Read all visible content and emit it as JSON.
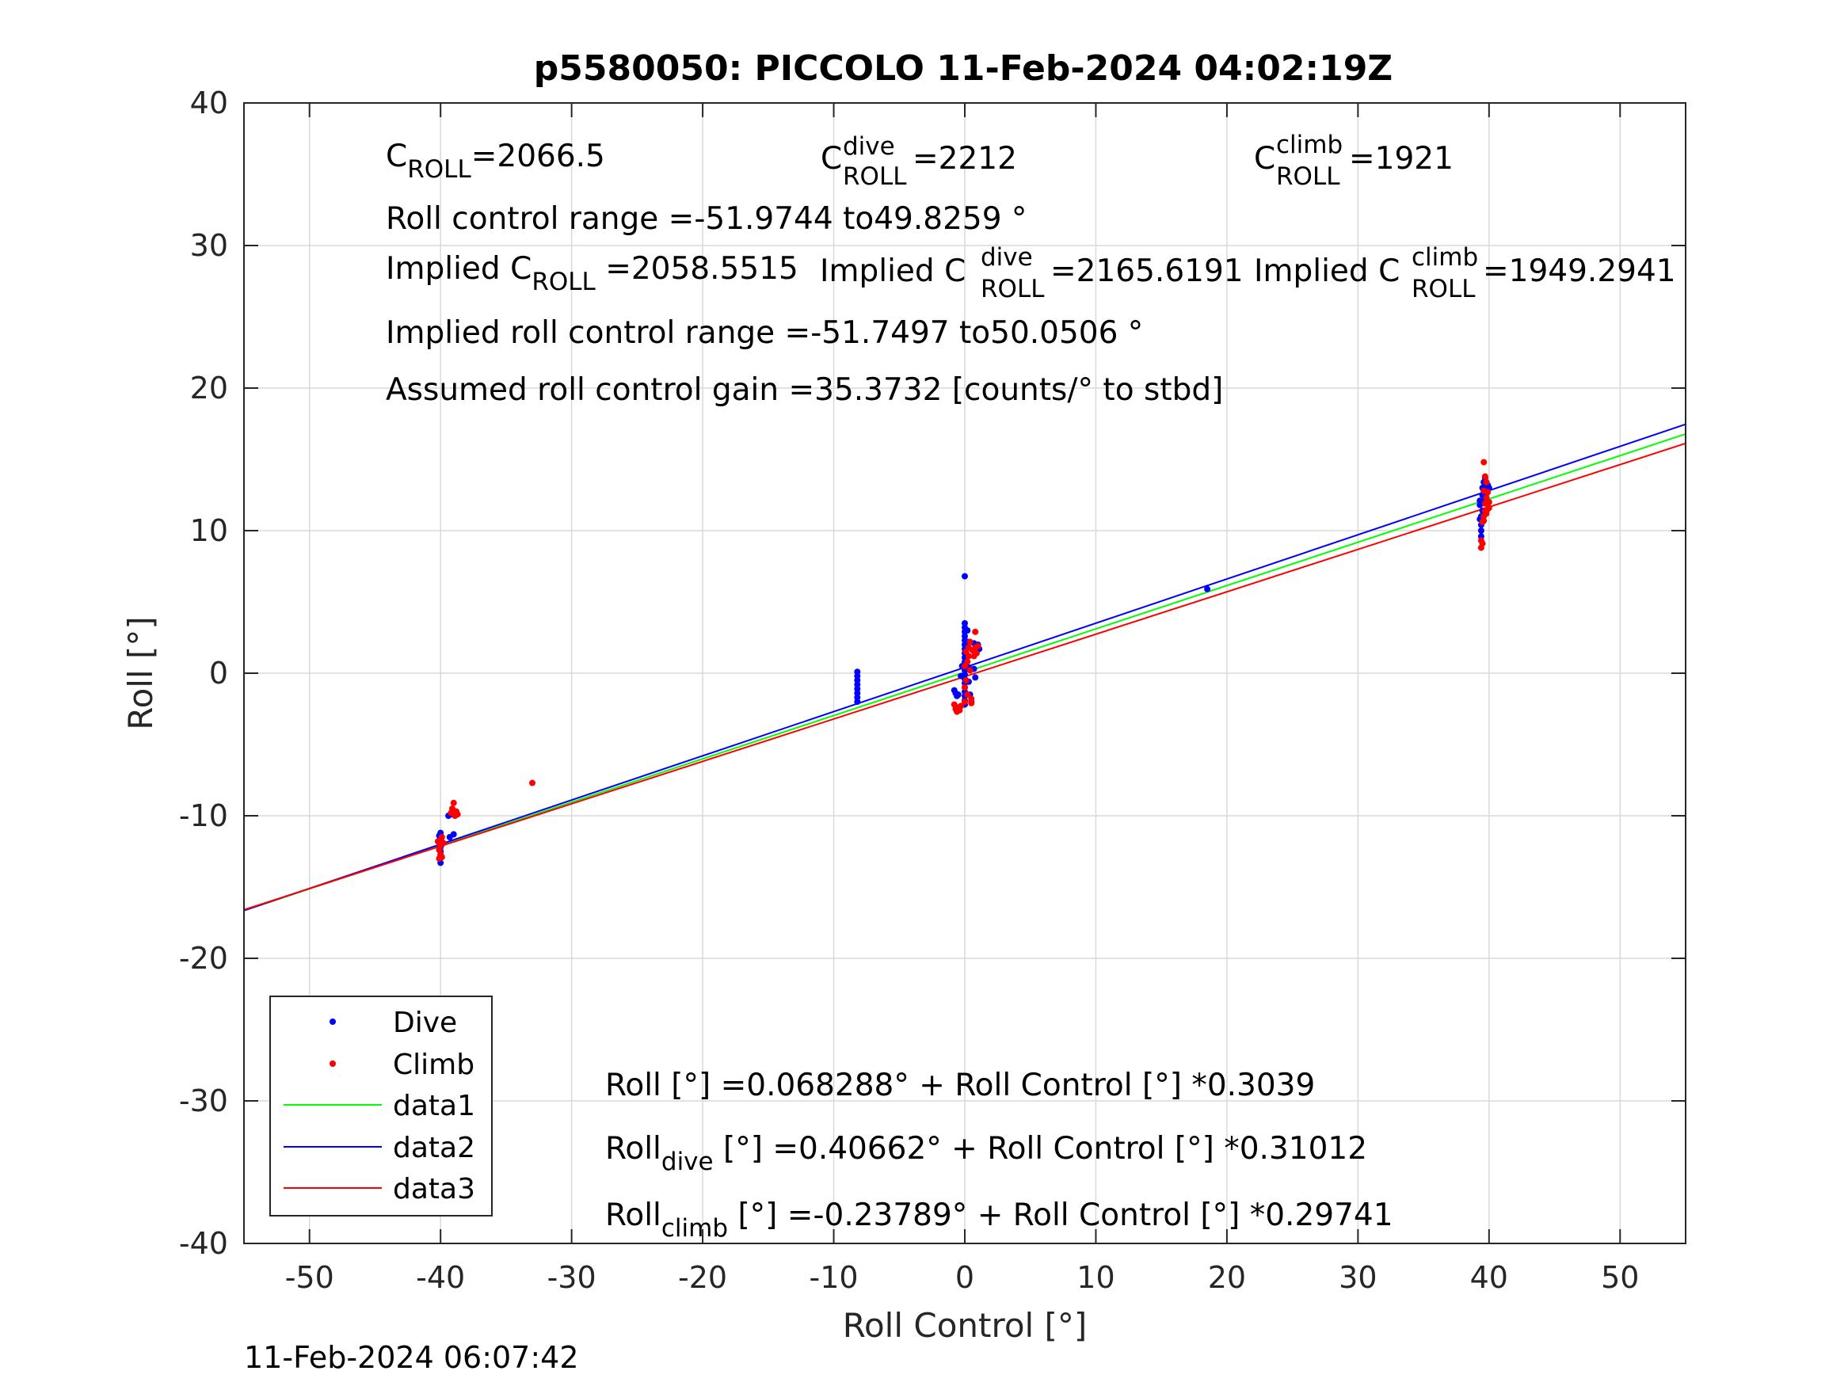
{
  "title": "p5580050: PICCOLO 11-Feb-2024 04:02:19Z",
  "timestamp": "11-Feb-2024 06:07:42",
  "chart_data": {
    "type": "scatter",
    "xlabel": "Roll Control [°]",
    "ylabel": "Roll [°]",
    "xlim": [
      -55,
      55
    ],
    "ylim": [
      -40,
      40
    ],
    "xticks": [
      -50,
      -40,
      -30,
      -20,
      -10,
      0,
      10,
      20,
      30,
      40,
      50
    ],
    "yticks": [
      -40,
      -30,
      -20,
      -10,
      0,
      10,
      20,
      30,
      40
    ],
    "grid": true,
    "legend_location": "bottom-left",
    "annotations": {
      "c_roll": {
        "base": "C",
        "sub": "ROLL",
        "value": "=2066.5"
      },
      "c_roll_dive": {
        "base": "C",
        "sup": "dive",
        "sub": "ROLL",
        "value": " =2212"
      },
      "c_roll_climb": {
        "base": "C",
        "sup": "climb",
        "sub": "ROLL",
        "value": " =1921"
      },
      "roll_range": "Roll control range =-51.9744 to49.8259 °",
      "implied_c_roll": {
        "prefix": "Implied C",
        "sub": "ROLL",
        "value": " =2058.5515"
      },
      "implied_c_roll_dive": {
        "prefix": "Implied C",
        "sup": "dive",
        "sub": "ROLL",
        "value": " =2165.6191"
      },
      "implied_c_roll_climb": {
        "prefix": "Implied C",
        "sup": "climb",
        "sub": "ROLL",
        "value": " =1949.2941"
      },
      "implied_range": "Implied roll control range =-51.7497 to50.0506 °",
      "gain": "Assumed roll control gain =35.3732 [counts/° to stbd]",
      "fit_all": "Roll [°] =0.068288° + Roll Control [°] *0.3039",
      "fit_dive": {
        "base": "Roll",
        "sub": "dive",
        "rest": " [°] =0.40662° + Roll Control [°] *0.31012"
      },
      "fit_climb": {
        "base": "Roll",
        "sub": "climb",
        "rest": " [°] =-0.23789° + Roll Control [°] *0.29741"
      }
    },
    "series": [
      {
        "name": "Dive",
        "kind": "points",
        "color": "#0000ff",
        "points": [
          [
            -40,
            -11.2
          ],
          [
            -40,
            -11.6
          ],
          [
            -40,
            -11.9
          ],
          [
            -40,
            -12.2
          ],
          [
            -40,
            -12.5
          ],
          [
            -40,
            -12.8
          ],
          [
            -40,
            -13.3
          ],
          [
            -40.1,
            -11.4
          ],
          [
            -39.9,
            -12.0
          ],
          [
            -39.4,
            -10.0
          ],
          [
            -39.3,
            -11.5
          ],
          [
            -39.2,
            -9.9
          ],
          [
            -39.0,
            -11.3
          ],
          [
            -8.2,
            0.1
          ],
          [
            -8.2,
            -0.2
          ],
          [
            -8.2,
            -0.5
          ],
          [
            -8.2,
            -0.8
          ],
          [
            -8.2,
            -1.1
          ],
          [
            -8.2,
            -1.4
          ],
          [
            -8.2,
            -1.7
          ],
          [
            -8.2,
            -2.0
          ],
          [
            0,
            6.8
          ],
          [
            0,
            3.5
          ],
          [
            0,
            3.2
          ],
          [
            0,
            2.9
          ],
          [
            0,
            2.6
          ],
          [
            0,
            2.3
          ],
          [
            0,
            2.0
          ],
          [
            0,
            1.7
          ],
          [
            0,
            1.4
          ],
          [
            0,
            1.1
          ],
          [
            0,
            0.8
          ],
          [
            0,
            0.5
          ],
          [
            0,
            0.2
          ],
          [
            0,
            -0.1
          ],
          [
            0,
            -0.4
          ],
          [
            0,
            -0.7
          ],
          [
            0,
            -1.0
          ],
          [
            0,
            -1.3
          ],
          [
            0,
            -1.6
          ],
          [
            0,
            -1.9
          ],
          [
            0,
            -2.2
          ],
          [
            0.2,
            3.0
          ],
          [
            0.2,
            2.2
          ],
          [
            0.2,
            1.2
          ],
          [
            0.3,
            0.4
          ],
          [
            0.3,
            -0.6
          ],
          [
            0.4,
            -1.5
          ],
          [
            0.5,
            -2.0
          ],
          [
            -0.8,
            -1.2
          ],
          [
            -0.7,
            -1.4
          ],
          [
            -0.6,
            -1.6
          ],
          [
            -0.5,
            -1.5
          ],
          [
            -0.2,
            0.5
          ],
          [
            -0.3,
            -0.2
          ],
          [
            0.7,
            2.1
          ],
          [
            0.7,
            0.3
          ],
          [
            0.8,
            -0.3
          ],
          [
            1.0,
            2.0
          ],
          [
            1.1,
            1.7
          ],
          [
            18.5,
            5.9
          ],
          [
            39.3,
            12.1
          ],
          [
            39.3,
            11.8
          ],
          [
            39.4,
            11.0
          ],
          [
            39.4,
            10.4
          ],
          [
            39.4,
            10.0
          ],
          [
            39.4,
            9.6
          ],
          [
            39.5,
            12.5
          ],
          [
            39.5,
            13.0
          ],
          [
            39.6,
            12.8
          ],
          [
            39.6,
            13.4
          ],
          [
            39.7,
            13.7
          ],
          [
            39.7,
            12.2
          ],
          [
            39.8,
            13.1
          ],
          [
            39.8,
            12.6
          ],
          [
            39.9,
            13.2
          ],
          [
            39.9,
            12.9
          ],
          [
            40.0,
            13.0
          ],
          [
            39.6,
            12.0
          ],
          [
            39.5,
            11.4
          ],
          [
            39.3,
            10.8
          ]
        ]
      },
      {
        "name": "Climb",
        "kind": "points",
        "color": "#ff0000",
        "points": [
          [
            -40.2,
            -11.8
          ],
          [
            -40.1,
            -12.4
          ],
          [
            -40.0,
            -12.7
          ],
          [
            -40.0,
            -12.1
          ],
          [
            -39.9,
            -11.5
          ],
          [
            -39.9,
            -12.9
          ],
          [
            -40.1,
            -13.0
          ],
          [
            -39.8,
            -11.9
          ],
          [
            -39.2,
            -9.8
          ],
          [
            -39.1,
            -9.5
          ],
          [
            -39.0,
            -9.1
          ],
          [
            -38.9,
            -10.0
          ],
          [
            -38.8,
            -9.7
          ],
          [
            -38.7,
            -9.9
          ],
          [
            -33.0,
            -7.7
          ],
          [
            -0.8,
            -2.2
          ],
          [
            -0.7,
            -2.5
          ],
          [
            -0.6,
            -2.7
          ],
          [
            -0.5,
            -2.4
          ],
          [
            -0.4,
            -2.6
          ],
          [
            -0.3,
            -2.3
          ],
          [
            0.0,
            -2.0
          ],
          [
            0.0,
            -1.0
          ],
          [
            0.0,
            0.5
          ],
          [
            0.1,
            1.5
          ],
          [
            0.1,
            -0.5
          ],
          [
            0.2,
            -1.5
          ],
          [
            0.2,
            0.8
          ],
          [
            0.3,
            1.2
          ],
          [
            0.3,
            1.8
          ],
          [
            0.4,
            2.2
          ],
          [
            0.4,
            0.2
          ],
          [
            0.5,
            -1.8
          ],
          [
            0.5,
            -2.1
          ],
          [
            0.6,
            1.6
          ],
          [
            0.7,
            1.2
          ],
          [
            0.8,
            2.9
          ],
          [
            0.8,
            1.8
          ],
          [
            0.9,
            1.4
          ],
          [
            1.0,
            1.9
          ],
          [
            39.4,
            8.8
          ],
          [
            39.4,
            9.3
          ],
          [
            39.5,
            9.1
          ],
          [
            39.5,
            10.6
          ],
          [
            39.6,
            11.0
          ],
          [
            39.6,
            10.7
          ],
          [
            39.7,
            11.4
          ],
          [
            39.7,
            11.9
          ],
          [
            39.8,
            12.3
          ],
          [
            39.8,
            13.4
          ],
          [
            39.6,
            14.8
          ],
          [
            39.9,
            12.7
          ],
          [
            39.9,
            11.5
          ],
          [
            40.0,
            12.0
          ],
          [
            40.0,
            11.6
          ],
          [
            39.7,
            13.8
          ],
          [
            39.8,
            11.2
          ],
          [
            39.6,
            12.8
          ]
        ]
      },
      {
        "name": "data1",
        "kind": "line",
        "color": "#00ff00",
        "x": [
          -55,
          55
        ],
        "y": [
          -16.646,
          16.783
        ]
      },
      {
        "name": "data2",
        "kind": "line",
        "color": "#0000ff",
        "x": [
          -55,
          55
        ],
        "y": [
          -16.65,
          17.463
        ]
      },
      {
        "name": "data3",
        "kind": "line",
        "color": "#ff0000",
        "x": [
          -55,
          55
        ],
        "y": [
          -16.595,
          16.12
        ]
      }
    ]
  }
}
